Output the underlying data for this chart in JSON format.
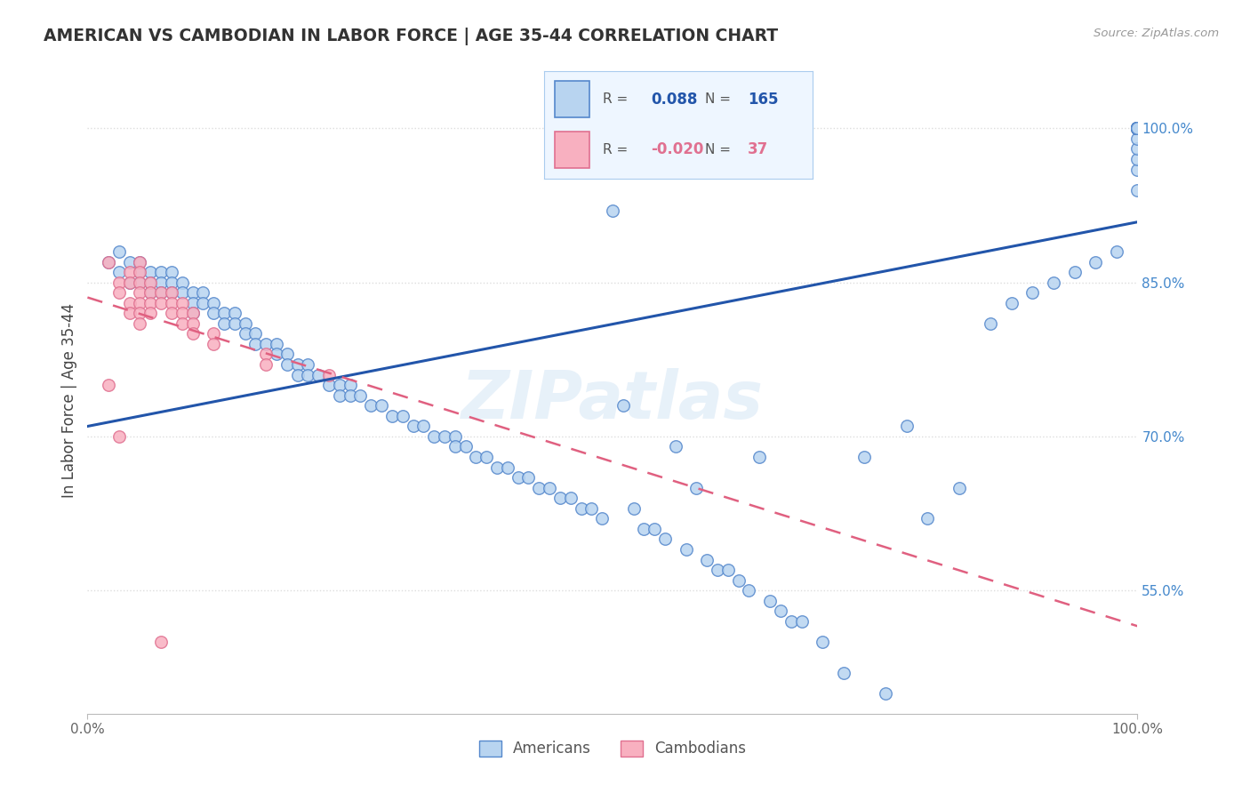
{
  "title": "AMERICAN VS CAMBODIAN IN LABOR FORCE | AGE 35-44 CORRELATION CHART",
  "source": "Source: ZipAtlas.com",
  "ylabel": "In Labor Force | Age 35-44",
  "xlim": [
    0.0,
    1.0
  ],
  "ylim": [
    0.43,
    1.04
  ],
  "ytick_vals": [
    0.55,
    0.7,
    0.85,
    1.0
  ],
  "ytick_labels": [
    "55.0%",
    "70.0%",
    "85.0%",
    "100.0%"
  ],
  "american_R": "0.088",
  "american_N": "165",
  "cambodian_R": "-0.020",
  "cambodian_N": "37",
  "american_marker_color": "#b8d4f0",
  "american_edge_color": "#5588cc",
  "cambodian_marker_color": "#f8b0c0",
  "cambodian_edge_color": "#e07090",
  "american_trend_color": "#2255aa",
  "cambodian_trend_color": "#e06080",
  "watermark": "ZIPatlas",
  "legend_bg": "#eef6ff",
  "grid_color": "#dddddd",
  "title_color": "#333333",
  "source_color": "#999999",
  "right_tick_color": "#4488cc",
  "am_x": [
    0.02,
    0.03,
    0.03,
    0.04,
    0.04,
    0.05,
    0.05,
    0.05,
    0.06,
    0.06,
    0.06,
    0.07,
    0.07,
    0.07,
    0.08,
    0.08,
    0.08,
    0.09,
    0.09,
    0.1,
    0.1,
    0.1,
    0.11,
    0.11,
    0.12,
    0.12,
    0.13,
    0.13,
    0.14,
    0.14,
    0.15,
    0.15,
    0.16,
    0.16,
    0.17,
    0.18,
    0.18,
    0.19,
    0.19,
    0.2,
    0.2,
    0.21,
    0.21,
    0.22,
    0.23,
    0.24,
    0.24,
    0.25,
    0.25,
    0.26,
    0.27,
    0.28,
    0.29,
    0.3,
    0.31,
    0.32,
    0.33,
    0.34,
    0.35,
    0.35,
    0.36,
    0.37,
    0.38,
    0.39,
    0.4,
    0.41,
    0.42,
    0.43,
    0.44,
    0.45,
    0.46,
    0.47,
    0.48,
    0.49,
    0.5,
    0.51,
    0.52,
    0.53,
    0.54,
    0.55,
    0.56,
    0.57,
    0.58,
    0.59,
    0.6,
    0.61,
    0.62,
    0.63,
    0.64,
    0.65,
    0.66,
    0.67,
    0.68,
    0.7,
    0.72,
    0.74,
    0.76,
    0.78,
    0.8,
    0.83,
    0.86,
    0.88,
    0.9,
    0.92,
    0.94,
    0.96,
    0.98,
    1.0,
    1.0,
    1.0,
    1.0,
    1.0,
    1.0,
    1.0,
    1.0,
    1.0,
    1.0,
    1.0,
    1.0,
    1.0,
    1.0,
    1.0,
    1.0,
    1.0,
    1.0,
    1.0,
    1.0,
    1.0,
    1.0,
    1.0,
    1.0,
    1.0,
    1.0,
    1.0,
    1.0,
    1.0,
    1.0,
    1.0,
    1.0,
    1.0,
    1.0,
    1.0,
    1.0,
    1.0,
    1.0,
    1.0,
    1.0,
    1.0,
    1.0,
    1.0,
    1.0,
    1.0,
    1.0,
    1.0,
    1.0,
    1.0,
    1.0,
    1.0,
    1.0,
    1.0,
    1.0,
    1.0,
    1.0
  ],
  "am_y": [
    0.87,
    0.88,
    0.86,
    0.85,
    0.87,
    0.86,
    0.85,
    0.87,
    0.86,
    0.85,
    0.84,
    0.86,
    0.85,
    0.84,
    0.86,
    0.85,
    0.84,
    0.85,
    0.84,
    0.84,
    0.83,
    0.82,
    0.84,
    0.83,
    0.83,
    0.82,
    0.82,
    0.81,
    0.82,
    0.81,
    0.81,
    0.8,
    0.8,
    0.79,
    0.79,
    0.79,
    0.78,
    0.78,
    0.77,
    0.77,
    0.76,
    0.77,
    0.76,
    0.76,
    0.75,
    0.75,
    0.74,
    0.75,
    0.74,
    0.74,
    0.73,
    0.73,
    0.72,
    0.72,
    0.71,
    0.71,
    0.7,
    0.7,
    0.7,
    0.69,
    0.69,
    0.68,
    0.68,
    0.67,
    0.67,
    0.66,
    0.66,
    0.65,
    0.65,
    0.64,
    0.64,
    0.63,
    0.63,
    0.62,
    0.92,
    0.73,
    0.63,
    0.61,
    0.61,
    0.6,
    0.69,
    0.59,
    0.65,
    0.58,
    0.57,
    0.57,
    0.56,
    0.55,
    0.68,
    0.54,
    0.53,
    0.52,
    0.52,
    0.5,
    0.47,
    0.68,
    0.45,
    0.71,
    0.62,
    0.65,
    0.81,
    0.83,
    0.84,
    0.85,
    0.86,
    0.87,
    0.88,
    0.94,
    0.96,
    0.97,
    0.98,
    0.99,
    1.0,
    1.0,
    1.0,
    1.0,
    1.0,
    1.0,
    1.0,
    1.0,
    1.0,
    1.0,
    1.0,
    1.0,
    1.0,
    1.0,
    1.0,
    1.0,
    1.0,
    1.0,
    1.0,
    1.0,
    1.0,
    1.0,
    1.0,
    1.0,
    1.0,
    1.0,
    1.0,
    1.0,
    1.0,
    1.0,
    1.0,
    1.0,
    1.0,
    1.0,
    1.0,
    1.0,
    1.0,
    1.0,
    1.0,
    1.0,
    1.0,
    1.0,
    1.0,
    1.0,
    1.0,
    1.0,
    1.0,
    1.0,
    1.0,
    1.0,
    1.0
  ],
  "cam_x": [
    0.02,
    0.02,
    0.03,
    0.03,
    0.03,
    0.04,
    0.04,
    0.04,
    0.04,
    0.05,
    0.05,
    0.05,
    0.05,
    0.05,
    0.05,
    0.05,
    0.06,
    0.06,
    0.06,
    0.06,
    0.07,
    0.07,
    0.07,
    0.08,
    0.08,
    0.08,
    0.09,
    0.09,
    0.09,
    0.1,
    0.1,
    0.1,
    0.12,
    0.12,
    0.17,
    0.17,
    0.23
  ],
  "cam_y": [
    0.87,
    0.75,
    0.85,
    0.84,
    0.7,
    0.86,
    0.85,
    0.83,
    0.82,
    0.87,
    0.86,
    0.85,
    0.84,
    0.83,
    0.82,
    0.81,
    0.85,
    0.84,
    0.83,
    0.82,
    0.84,
    0.83,
    0.5,
    0.84,
    0.83,
    0.82,
    0.83,
    0.82,
    0.81,
    0.82,
    0.81,
    0.8,
    0.8,
    0.79,
    0.78,
    0.77,
    0.76
  ]
}
